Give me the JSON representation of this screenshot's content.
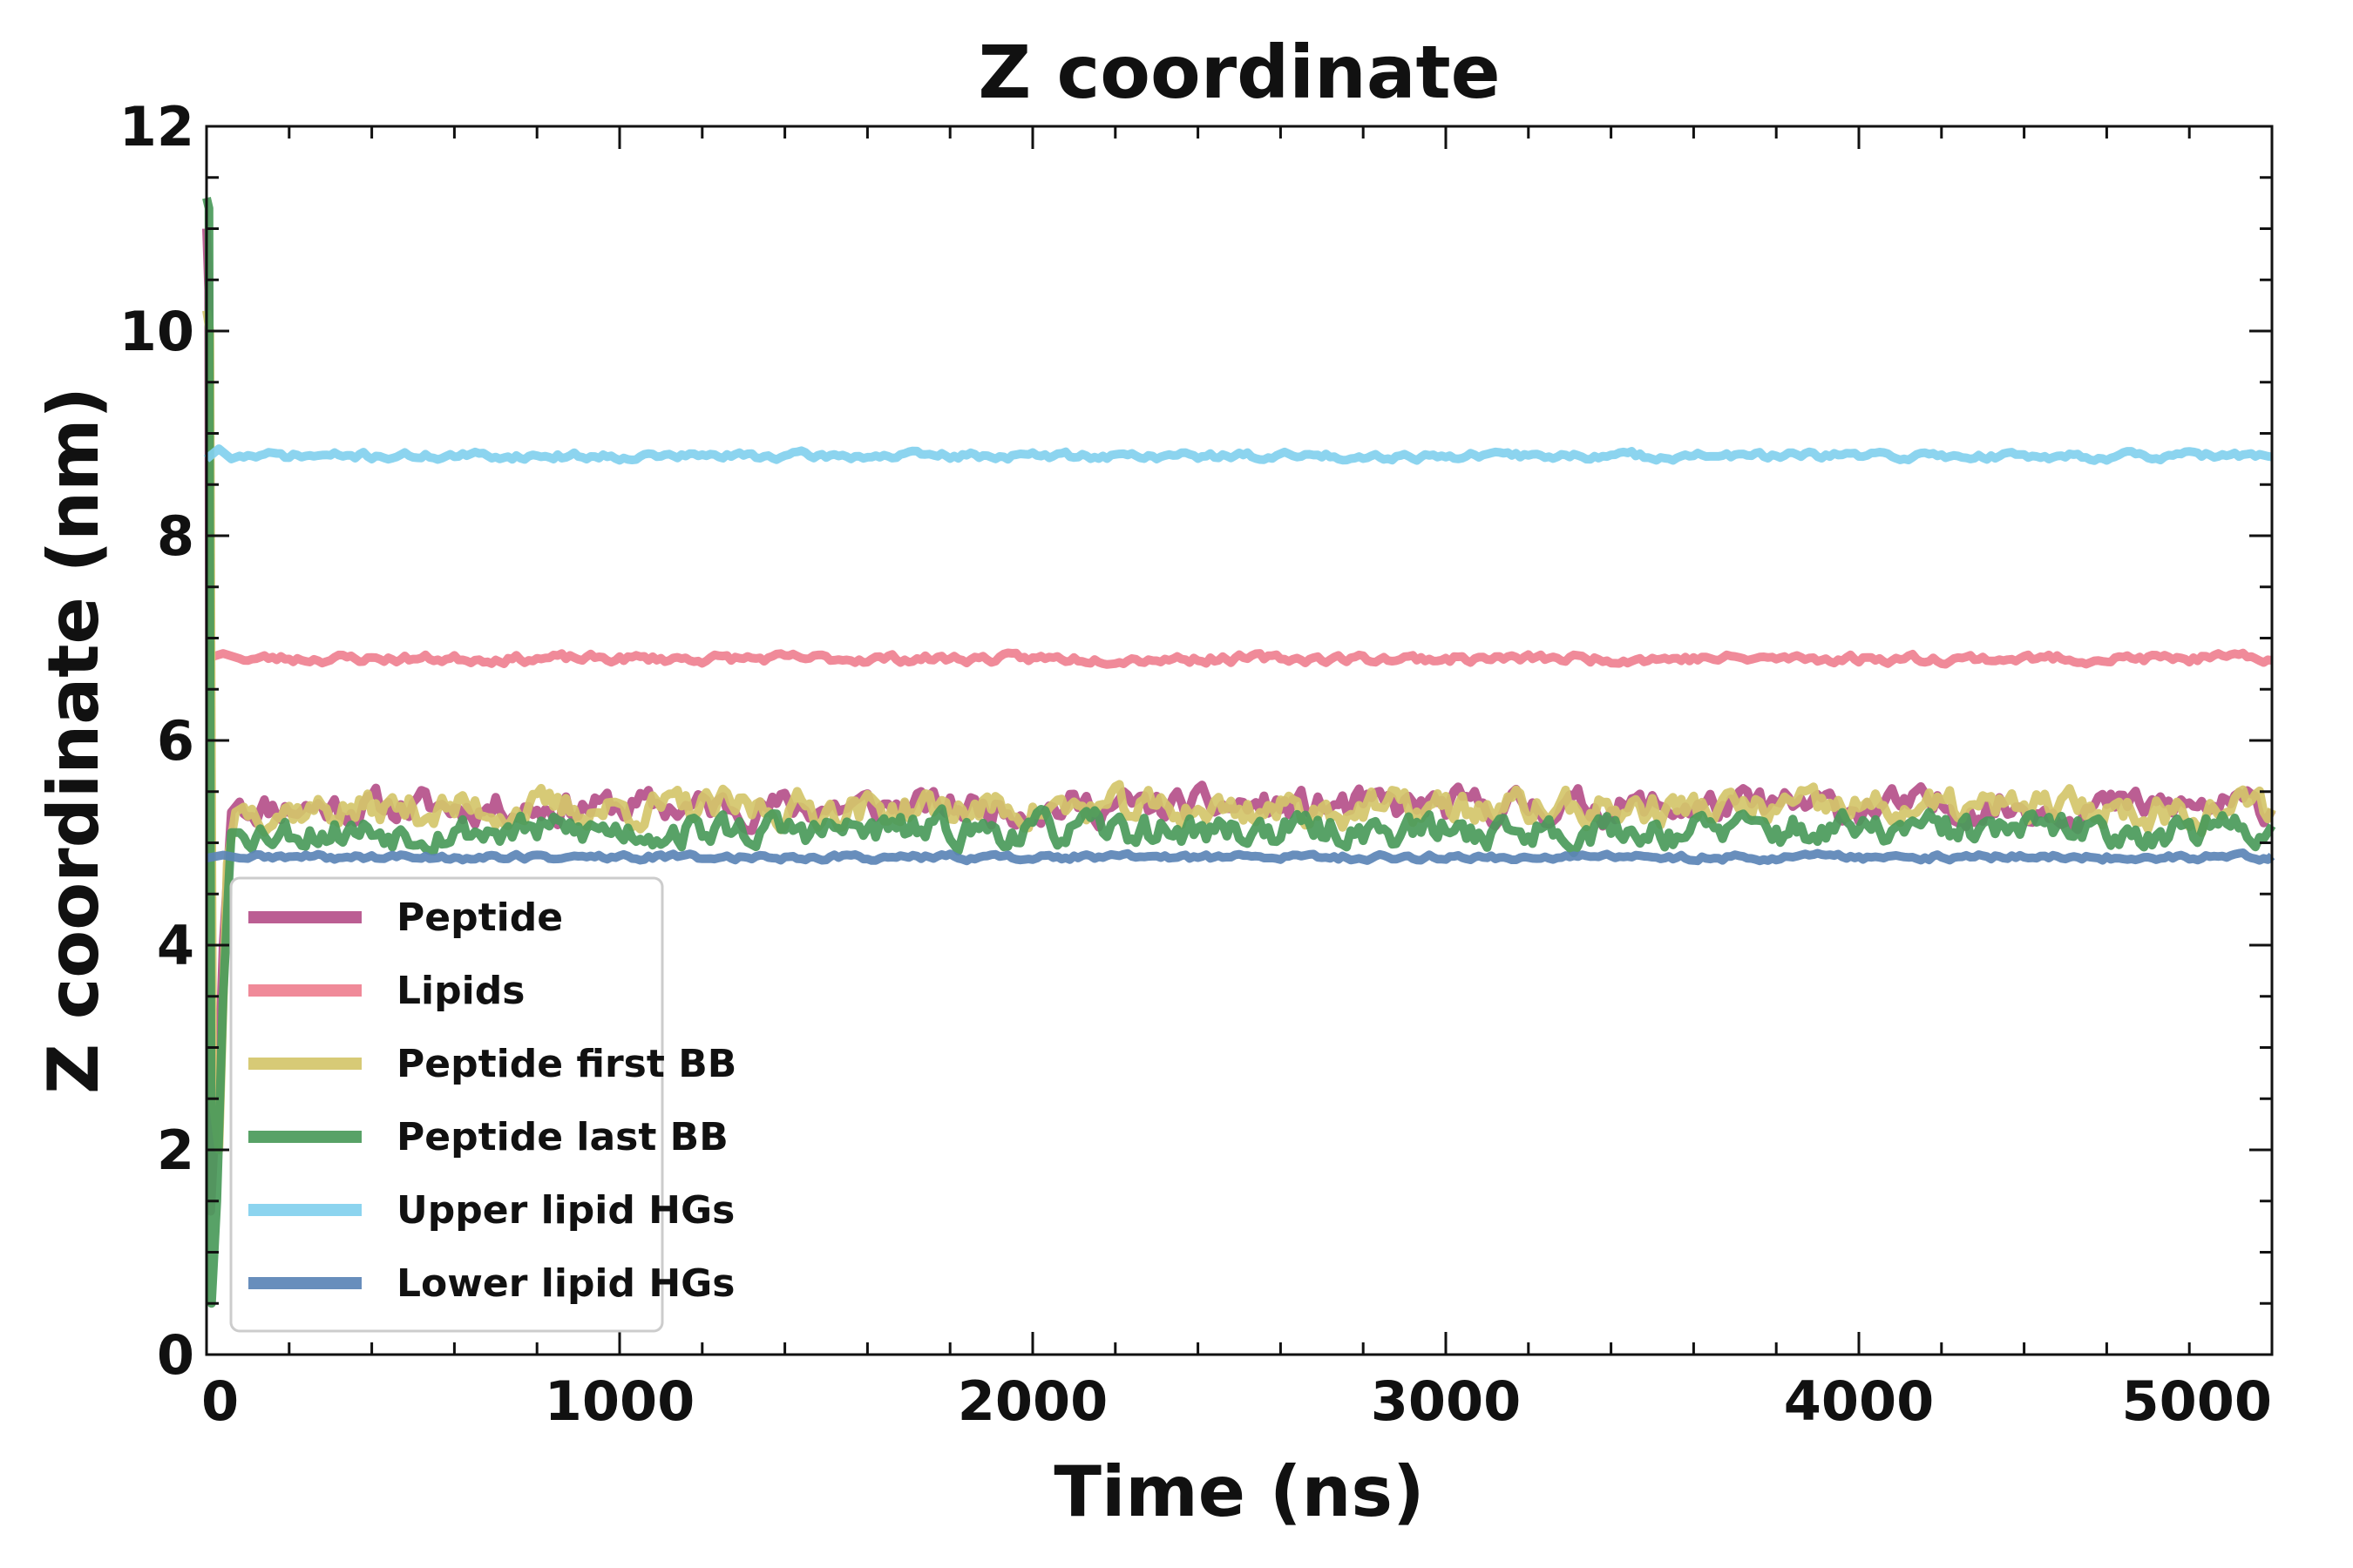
{
  "chart_data": {
    "type": "line",
    "title": "Z coordinate",
    "xlabel": "Time (ns)",
    "ylabel": "Z coordinate (nm)",
    "xlim": [
      0,
      5000
    ],
    "ylim": [
      0,
      12
    ],
    "xticks": [
      0,
      1000,
      2000,
      3000,
      4000,
      5000
    ],
    "yticks": [
      0,
      2,
      4,
      6,
      8,
      10,
      12
    ],
    "grid": false,
    "legend_position": "lower-left",
    "series": [
      {
        "name": "Peptide",
        "color": "#b5508a",
        "start": [
          [
            0,
            11.0
          ],
          [
            5,
            10.4
          ],
          [
            10,
            1.4
          ],
          [
            20,
            2.2
          ],
          [
            30,
            2.8
          ],
          [
            40,
            4.0
          ],
          [
            60,
            5.3
          ],
          [
            80,
            5.4
          ]
        ],
        "mean": 5.35,
        "noise": 0.13,
        "seed": 11
      },
      {
        "name": "Lipids",
        "color": "#ef8090",
        "start": [
          [
            0,
            6.8
          ],
          [
            40,
            6.85
          ],
          [
            80,
            6.8
          ]
        ],
        "mean": 6.8,
        "noise": 0.035,
        "seed": 23
      },
      {
        "name": "Peptide first BB",
        "color": "#d4c56a",
        "start": [
          [
            0,
            10.2
          ],
          [
            8,
            10.0
          ],
          [
            15,
            2.5
          ],
          [
            30,
            2.0
          ],
          [
            50,
            4.8
          ],
          [
            70,
            5.3
          ],
          [
            90,
            5.35
          ]
        ],
        "mean": 5.33,
        "noise": 0.14,
        "seed": 37
      },
      {
        "name": "Peptide last BB",
        "color": "#4a9a5a",
        "start": [
          [
            0,
            11.3
          ],
          [
            6,
            11.2
          ],
          [
            12,
            0.5
          ],
          [
            25,
            1.5
          ],
          [
            40,
            3.5
          ],
          [
            60,
            5.1
          ],
          [
            80,
            5.1
          ]
        ],
        "mean": 5.12,
        "noise": 0.13,
        "seed": 53
      },
      {
        "name": "Upper lipid HGs",
        "color": "#82d0ee",
        "start": [
          [
            0,
            8.75
          ],
          [
            30,
            8.85
          ],
          [
            60,
            8.75
          ],
          [
            80,
            8.78
          ]
        ],
        "mean": 8.78,
        "noise": 0.03,
        "seed": 71
      },
      {
        "name": "Lower lipid HGs",
        "color": "#5b84b6",
        "start": [
          [
            0,
            4.85
          ],
          [
            40,
            4.88
          ],
          [
            80,
            4.85
          ]
        ],
        "mean": 4.86,
        "noise": 0.025,
        "seed": 89
      }
    ]
  }
}
